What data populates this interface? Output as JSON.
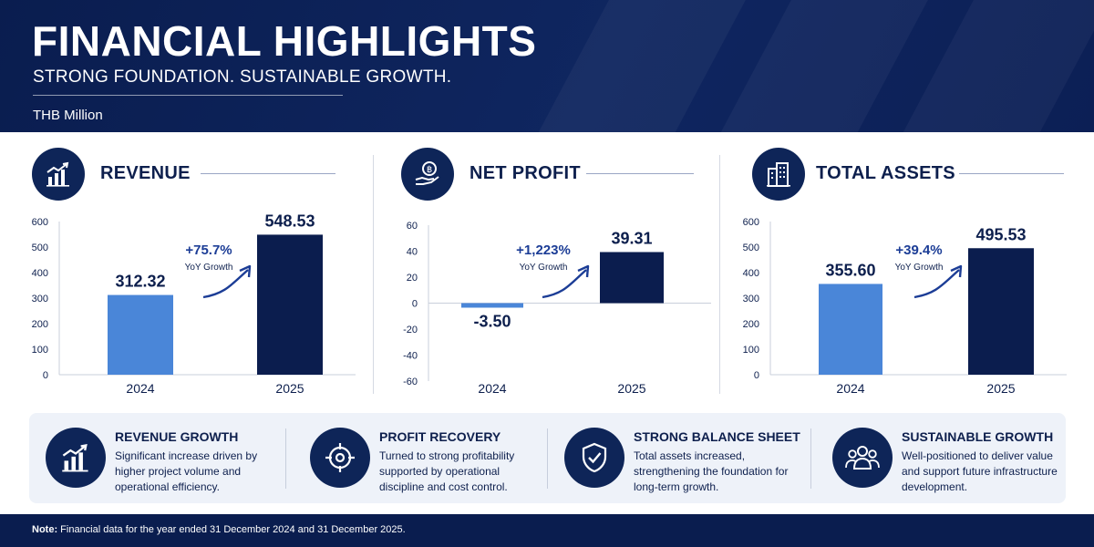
{
  "header": {
    "title": "FINANCIAL HIGHLIGHTS",
    "subtitle": "STRONG FOUNDATION. SUSTAINABLE GROWTH.",
    "unit": "THB Million"
  },
  "colors": {
    "navy": "#0e2558",
    "light_bar": "#4a86d8",
    "dark_bar": "#0b1d4e",
    "header_bg": "#0a1d4f",
    "panel_bg": "#eef2f9"
  },
  "chart_data": [
    {
      "type": "bar",
      "title": "REVENUE",
      "icon": "bar-chart-growth-icon",
      "categories": [
        "2024",
        "2025"
      ],
      "values": [
        312.32,
        548.53
      ],
      "value_labels": [
        "312.32",
        "548.53"
      ],
      "ylim": [
        0,
        600
      ],
      "yticks": [
        "600",
        "500",
        "400",
        "300",
        "200",
        "100",
        "0"
      ],
      "growth_label": "+75.7%",
      "growth_caption": "YoY Growth"
    },
    {
      "type": "bar",
      "title": "NET PROFIT",
      "icon": "coin-hand-icon",
      "categories": [
        "2024",
        "2025"
      ],
      "values": [
        -3.5,
        39.31
      ],
      "value_labels": [
        "-3.50",
        "39.31"
      ],
      "ylim": [
        -60,
        60
      ],
      "yticks": [
        "60",
        "40",
        "20",
        "0",
        "-20",
        "-40",
        "-60"
      ],
      "growth_label": "+1,223%",
      "growth_caption": "YoY Growth"
    },
    {
      "type": "bar",
      "title": "TOTAL ASSETS",
      "icon": "buildings-icon",
      "categories": [
        "2024",
        "2025"
      ],
      "values": [
        355.6,
        495.53
      ],
      "value_labels": [
        "355.60",
        "495.53"
      ],
      "ylim": [
        0,
        600
      ],
      "yticks": [
        "600",
        "500",
        "400",
        "300",
        "200",
        "100",
        "0"
      ],
      "growth_label": "+39.4%",
      "growth_caption": "YoY Growth"
    }
  ],
  "features": [
    {
      "title": "REVENUE GROWTH",
      "description": "Significant increase driven by higher project volume and operational efficiency.",
      "icon": "bar-chart-growth-icon"
    },
    {
      "title": "PROFIT RECOVERY",
      "description": "Turned to strong profitability supported by operational discipline and cost control.",
      "icon": "target-icon"
    },
    {
      "title": "STRONG BALANCE SHEET",
      "description": "Total assets increased, strengthening the foundation for long-term growth.",
      "icon": "shield-check-icon"
    },
    {
      "title": "SUSTAINABLE GROWTH",
      "description": "Well-positioned to deliver value and support future infrastructure development.",
      "icon": "people-group-icon"
    }
  ],
  "footer": {
    "note_label": "Note:",
    "note_text": " Financial data for the year ended 31 December 2024 and 31 December 2025."
  }
}
